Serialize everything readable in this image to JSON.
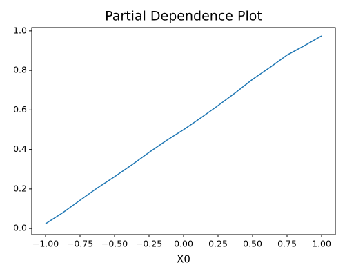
{
  "chart_data": {
    "type": "line",
    "title": "Partial Dependence Plot",
    "x_label": "X0",
    "x": [
      -1,
      -0.875,
      -0.75,
      -0.625,
      -0.5,
      -0.375,
      -0.25,
      -0.125,
      0,
      0.125,
      0.25,
      0.375,
      0.5,
      0.625,
      0.75,
      0.875,
      1
    ],
    "series": [
      {
        "color": "#1f77b4",
        "values": [
          0.024,
          0.08,
          0.143,
          0.205,
          0.262,
          0.322,
          0.385,
          0.445,
          0.5,
          0.56,
          0.622,
          0.687,
          0.755,
          0.815,
          0.878,
          0.925,
          0.975
        ]
      }
    ],
    "xlim": [
      -1.1,
      1.1
    ],
    "xticks": [
      {
        "value": -1,
        "label": "−1.00"
      },
      {
        "value": -0.75,
        "label": "−0.75"
      },
      {
        "value": -0.5,
        "label": "−0.50"
      },
      {
        "value": -0.25,
        "label": "−0.25"
      },
      {
        "value": 0,
        "label": "0.00"
      },
      0.25,
      {
        "value": 0.5,
        "label": "0.50"
      },
      0.75,
      {
        "value": 1,
        "label": "1.00"
      }
    ],
    "ylim": [
      -0.031,
      1.017
    ],
    "yticks": [
      {
        "value": 0,
        "label": "0.0"
      },
      0.2,
      0.4,
      0.6,
      0.8,
      {
        "value": 1,
        "label": "1.0"
      }
    ],
    "grid": false
  }
}
